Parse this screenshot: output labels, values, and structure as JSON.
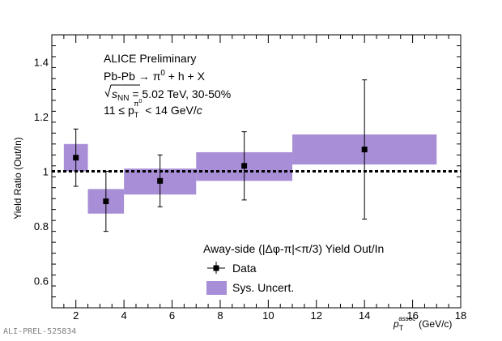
{
  "chart_data": {
    "type": "scatter",
    "xlabel": "p",
    "xlabel_sub": "T",
    "xlabel_sup": "assoc",
    "xlabel_unit": "(GeV/c)",
    "ylabel": "Yield Ratio (Out/In)",
    "xlim": [
      1,
      18
    ],
    "ylim": [
      0.5,
      1.5
    ],
    "xticks": [
      2,
      4,
      6,
      8,
      10,
      12,
      14,
      16,
      18
    ],
    "yticks": [
      0.6,
      0.8,
      1,
      1.2,
      1.4
    ],
    "ytick_labels": [
      "0.6",
      "0.8",
      "1",
      "1.2",
      "1.4"
    ],
    "reference_line": 1.0,
    "grid": false,
    "legend_position": "bottom-center",
    "legend_title": "Away-side (|Δφ-π|<π/3) Yield Out/In",
    "series": [
      {
        "name": "Data",
        "points": [
          {
            "x": 2.0,
            "y": 1.05,
            "err_low": 0.105,
            "err_high": 0.105
          },
          {
            "x": 3.25,
            "y": 0.89,
            "err_low": 0.11,
            "err_high": 0.11
          },
          {
            "x": 5.5,
            "y": 0.965,
            "err_low": 0.095,
            "err_high": 0.095
          },
          {
            "x": 9.0,
            "y": 1.02,
            "err_low": 0.125,
            "err_high": 0.125
          },
          {
            "x": 14.0,
            "y": 1.08,
            "err_low": 0.255,
            "err_high": 0.255
          }
        ]
      },
      {
        "name": "Sys. Uncert.",
        "boxes": [
          {
            "x_low": 1.5,
            "x_high": 2.5,
            "y_low": 1.0,
            "y_high": 1.1
          },
          {
            "x_low": 2.5,
            "x_high": 4.0,
            "y_low": 0.845,
            "y_high": 0.935
          },
          {
            "x_low": 4.0,
            "x_high": 7.0,
            "y_low": 0.915,
            "y_high": 1.01
          },
          {
            "x_low": 7.0,
            "x_high": 11.0,
            "y_low": 0.965,
            "y_high": 1.07
          },
          {
            "x_low": 11.0,
            "x_high": 17.0,
            "y_low": 1.025,
            "y_high": 1.135
          }
        ]
      }
    ],
    "annotations": {
      "line1": "ALICE Preliminary",
      "line2": "Pb-Pb → π",
      "line2_sup": "0",
      "line2_tail": " + h + X",
      "line3_s": "s",
      "line3_sub": "NN",
      "line3_tail": " = 5.02 TeV, 30-50%",
      "line4_head": "11 ≤ p",
      "line4_sub": "T",
      "line4_sup": "π",
      "line4_supsup": "0",
      "line4_tail": " < 14 GeV/",
      "line4_c": "c"
    }
  },
  "colors": {
    "box": "#a88ed6",
    "marker": "#000000",
    "axis": "#000000"
  },
  "watermark": "ALI-PREL-525834"
}
